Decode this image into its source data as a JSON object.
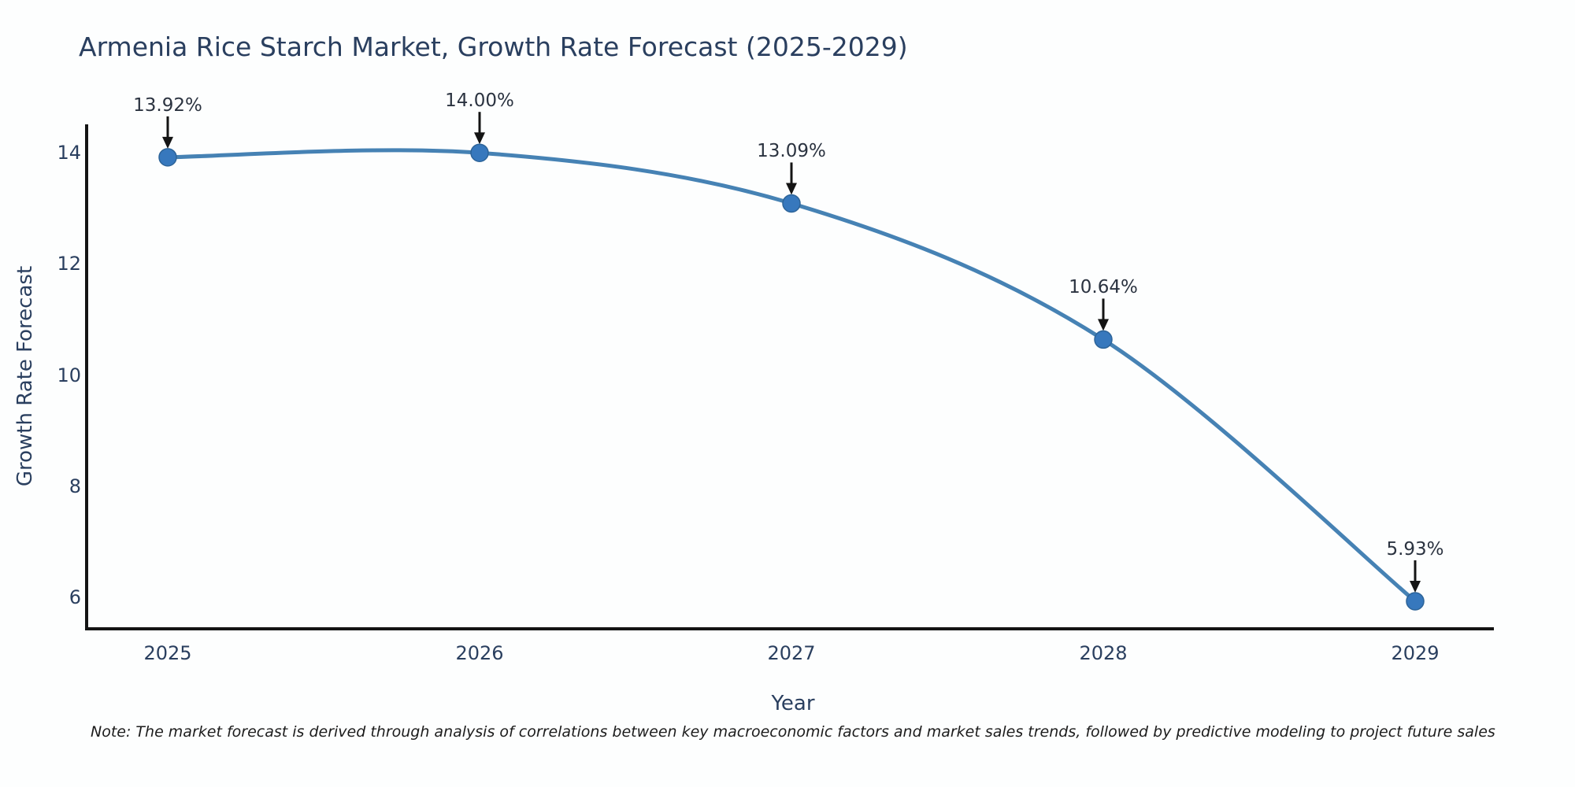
{
  "chart_data": {
    "type": "line",
    "title": "Armenia Rice Starch Market, Growth Rate Forecast (2025-2029)",
    "xlabel": "Year",
    "ylabel": "Growth Rate Forecast",
    "categories": [
      "2025",
      "2026",
      "2027",
      "2028",
      "2029"
    ],
    "values": [
      13.92,
      14.0,
      13.09,
      10.64,
      5.93
    ],
    "point_labels": [
      "13.92%",
      "14.00%",
      "13.09%",
      "10.64%",
      "5.93%"
    ],
    "yticks": [
      "6",
      "8",
      "10",
      "12",
      "14"
    ],
    "ylim": [
      5.4,
      14.5
    ],
    "line_shape": "spline",
    "grid": false,
    "legend_position": "none",
    "colors": {
      "line": "#4682b4",
      "marker_fill": "#3778bd",
      "marker_edge": "#2d6499",
      "arrow": "#141414",
      "axis_line": "#141414",
      "label_text": "#2a3f5f",
      "annotation_text": "#2b3340",
      "note_text": "#1c1c1c",
      "background": "#fdfefe"
    }
  },
  "note": {
    "text": "Note: The market forecast is derived through analysis of correlations between key macroeconomic factors and market sales trends, followed by predictive modeling to project future sales"
  }
}
